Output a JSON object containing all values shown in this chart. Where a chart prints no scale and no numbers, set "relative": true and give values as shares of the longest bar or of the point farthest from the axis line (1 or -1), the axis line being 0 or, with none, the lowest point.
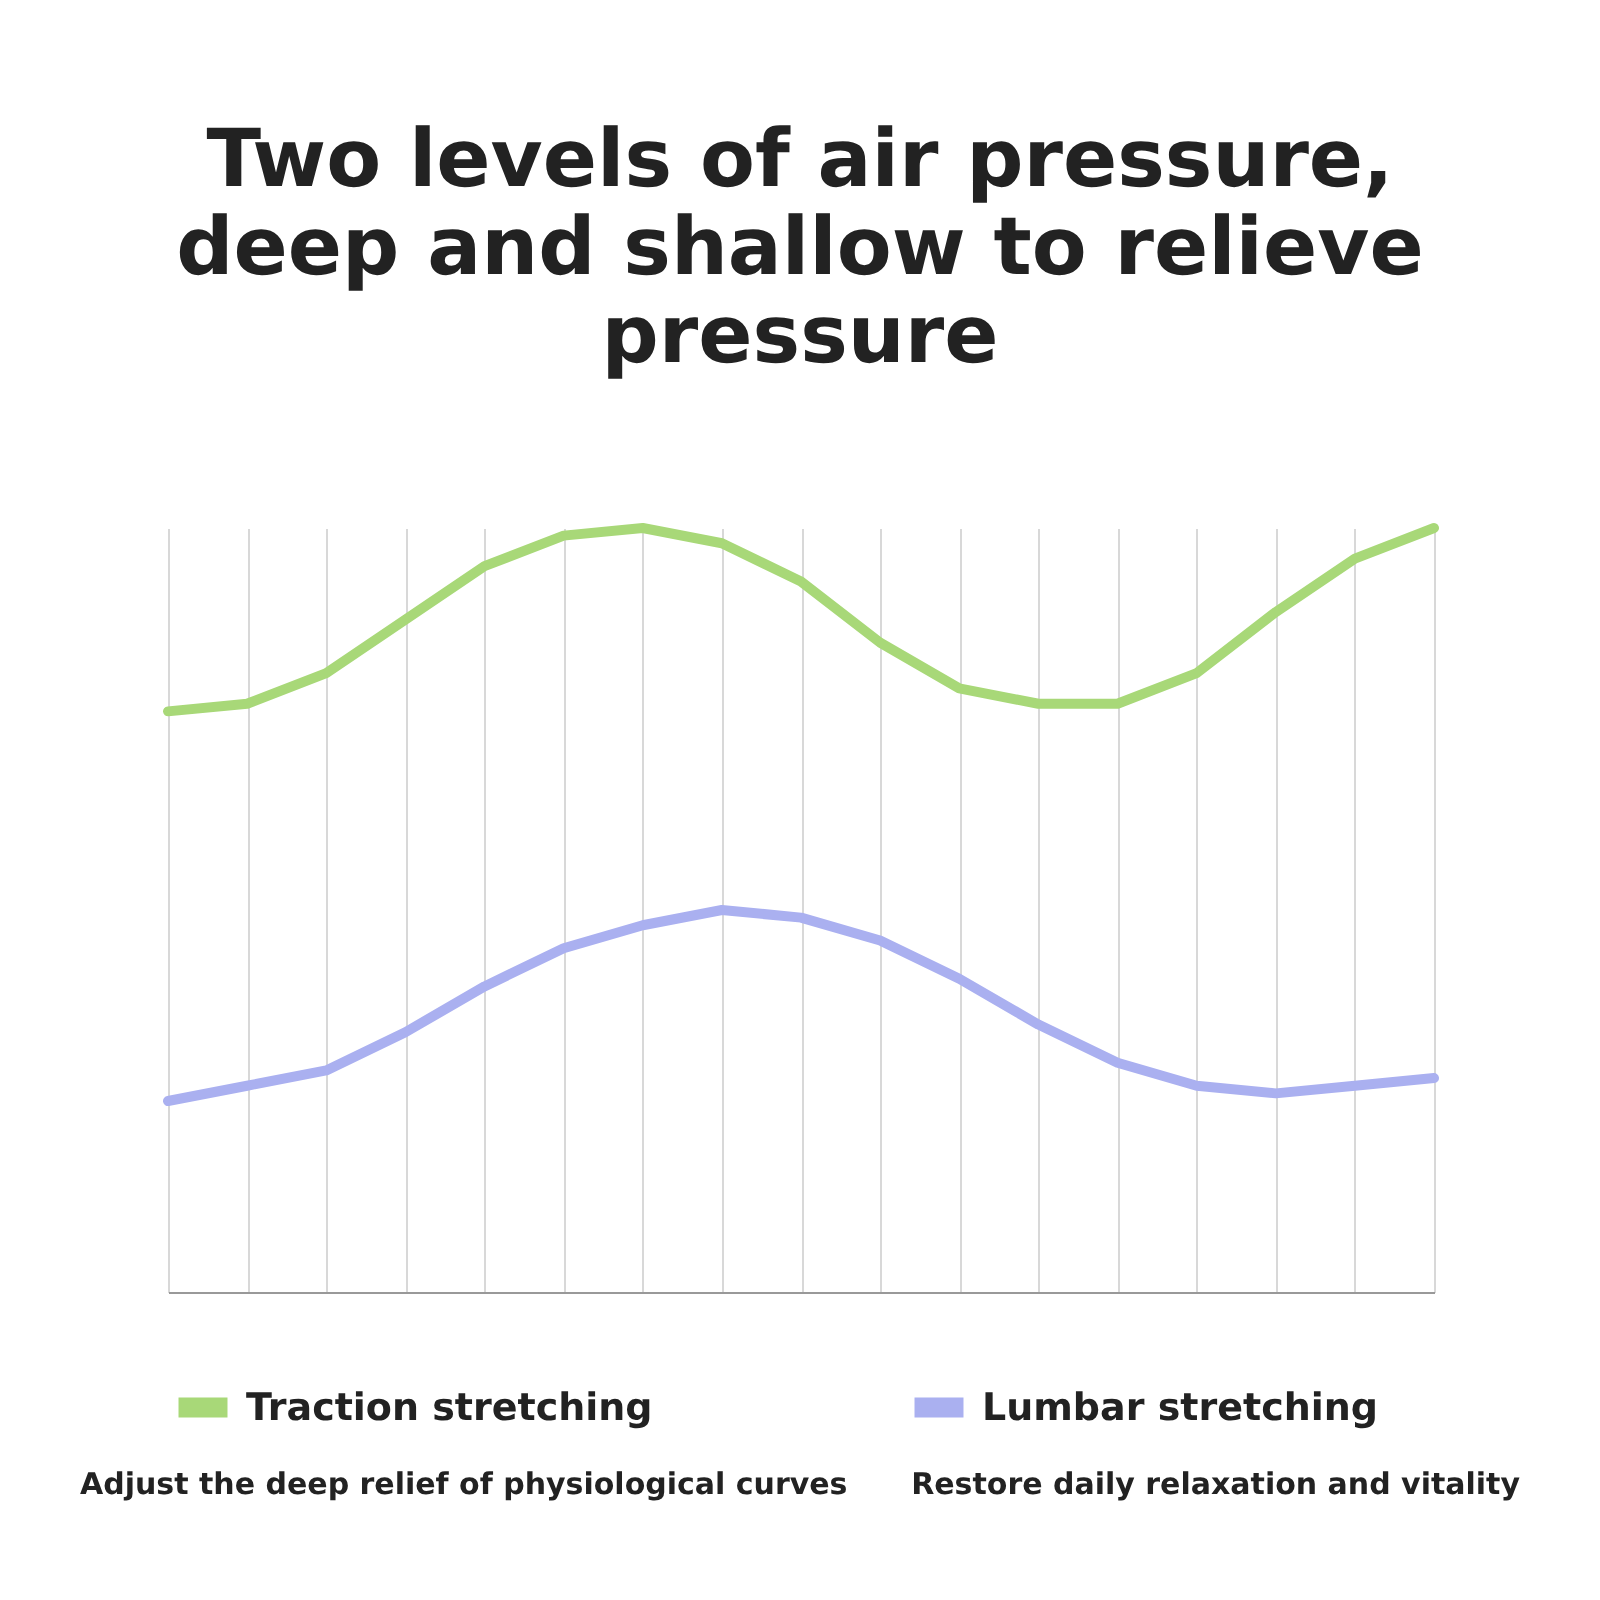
{
  "chart_data": {
    "type": "line",
    "title": "Two levels of air pressure, deep and shallow to relieve pressure",
    "relative": true,
    "categories": [
      null,
      null,
      null,
      null,
      null,
      null,
      null,
      null,
      null,
      null,
      null,
      null,
      null,
      null,
      null,
      null,
      null
    ],
    "series": [
      {
        "name": "Traction stretching",
        "color": "#a8d878",
        "values": [
          0.76,
          0.77,
          0.81,
          0.88,
          0.95,
          0.99,
          1,
          0.98,
          0.93,
          0.85,
          0.79,
          0.77,
          0.77,
          0.81,
          0.89,
          0.96,
          1
        ]
      },
      {
        "name": "Lumbar stretching",
        "color": "#aab0f0",
        "values": [
          0.25,
          0.27,
          0.29,
          0.34,
          0.4,
          0.45,
          0.48,
          0.5,
          0.49,
          0.46,
          0.41,
          0.35,
          0.3,
          0.27,
          0.26,
          0.27,
          0.28
        ]
      }
    ],
    "grid": "x",
    "legend": "bottom",
    "annotations": [
      "Adjust the deep relief of physiological curves",
      "Restore daily relaxation and vitality"
    ]
  }
}
